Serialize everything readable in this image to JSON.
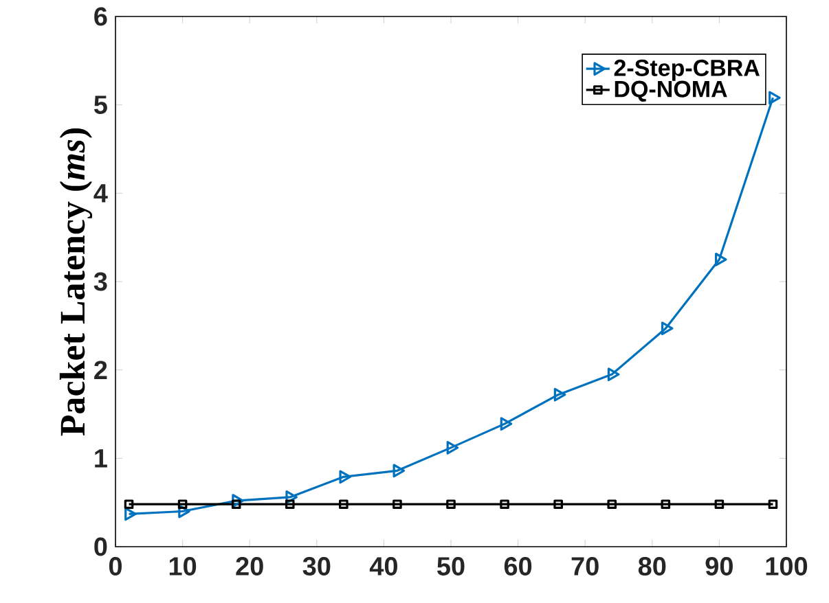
{
  "chart_data": {
    "type": "line",
    "ylabel": "Packet Latency (*ms*)",
    "x": [
      2,
      10,
      18,
      26,
      34,
      42,
      50,
      58,
      66,
      74,
      82,
      90,
      98
    ],
    "series": [
      {
        "name": "2-Step-CBRA",
        "color": "#0072bd",
        "marker": "triangle",
        "values": [
          0.37,
          0.4,
          0.52,
          0.56,
          0.79,
          0.86,
          1.12,
          1.39,
          1.72,
          1.95,
          2.47,
          3.25,
          5.08
        ]
      },
      {
        "name": "DQ-NOMA",
        "color": "#000000",
        "marker": "square",
        "values": [
          0.48,
          0.48,
          0.48,
          0.48,
          0.48,
          0.48,
          0.48,
          0.48,
          0.48,
          0.48,
          0.48,
          0.48,
          0.48
        ]
      }
    ],
    "xlim": [
      0,
      100
    ],
    "xticks": [
      0,
      10,
      20,
      30,
      40,
      50,
      60,
      70,
      80,
      90,
      100
    ],
    "ylim": [
      0,
      6
    ],
    "yticks": [
      0,
      1,
      2,
      3,
      4,
      5,
      6
    ],
    "legend": "top right",
    "grid": false,
    "line_style": "solid"
  }
}
